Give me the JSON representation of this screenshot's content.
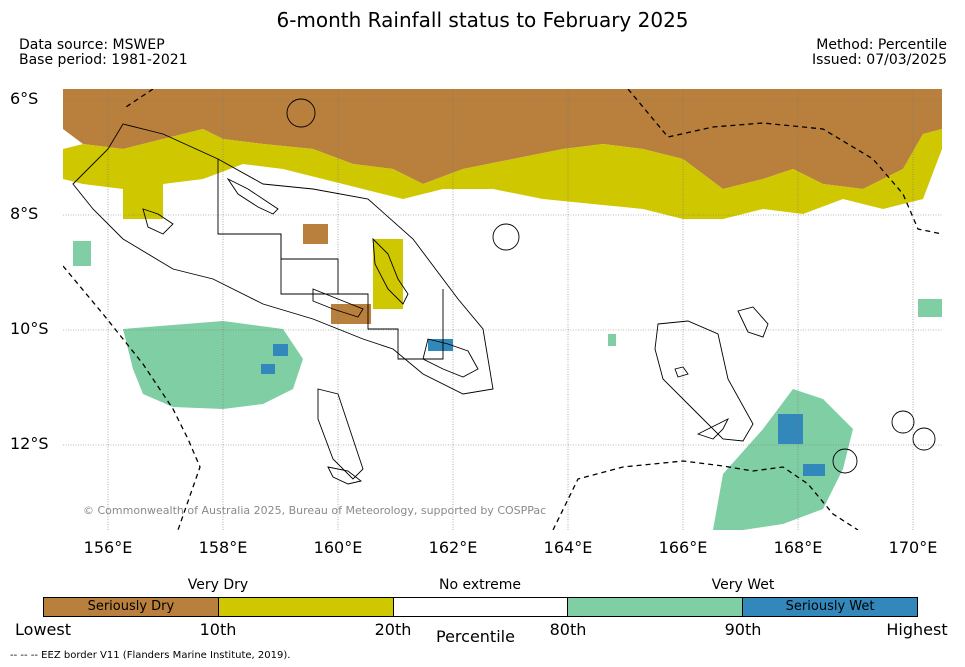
{
  "header": {
    "title": "6-month Rainfall status to February 2025",
    "source_line1": "Data source: MSWEP",
    "source_line2": "Base period: 1981-2021",
    "method_line1": "Method: Percentile",
    "method_line2": "Issued: 07/03/2025"
  },
  "map": {
    "lat_labels": [
      "6°S",
      "8°S",
      "10°S",
      "12°S"
    ],
    "lon_labels": [
      "156°E",
      "158°E",
      "160°E",
      "162°E",
      "164°E",
      "166°E",
      "168°E",
      "170°E"
    ],
    "copyright": "© Commonwealth of Australia 2025, Bureau of Meteorology, supported by COSPPac",
    "colors": {
      "seriously_dry": "#b8803c",
      "very_dry": "#cfc800",
      "no_extreme": "#ffffff",
      "very_wet": "#80cea4",
      "seriously_wet": "#3388bb"
    }
  },
  "colorbar": {
    "top_labels": [
      "Very Dry",
      "No extreme",
      "Very Wet"
    ],
    "segment_labels": [
      "Seriously Dry",
      "",
      "",
      "",
      "Seriously Wet"
    ],
    "tick_labels": [
      "Lowest",
      "10th",
      "20th",
      "80th",
      "90th",
      "Highest"
    ],
    "xlabel": "Percentile"
  },
  "footer": {
    "eez_note": "--  --  -- EEZ border V11 (Flanders Marine Institute, 2019)."
  }
}
